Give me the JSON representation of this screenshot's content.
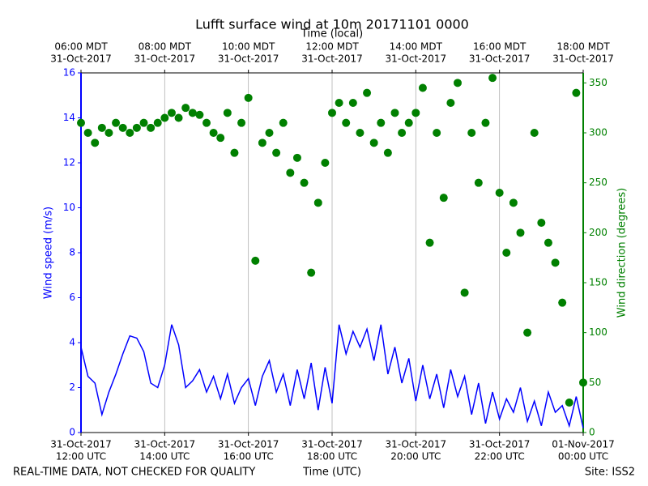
{
  "chart_data": {
    "type": "line-scatter",
    "title": "Lufft surface wind at 10m 20171101 0000",
    "x_label": "Time (UTC)",
    "x2_label": "Time (local)",
    "y_label": "Wind speed (m/s)",
    "y2_label": "Wind direction (degrees)",
    "footer_left": "REAL-TIME DATA, NOT CHECKED FOR QUALITY",
    "footer_right": "Site: ISS2",
    "xlim": [
      "2017-10-31T12:00",
      "2017-11-01T00:00"
    ],
    "xticks": [
      {
        "value": "2017-10-31T12:00",
        "label": [
          "31-Oct-2017",
          "12:00 UTC"
        ]
      },
      {
        "value": "2017-10-31T14:00",
        "label": [
          "31-Oct-2017",
          "14:00 UTC"
        ]
      },
      {
        "value": "2017-10-31T16:00",
        "label": [
          "31-Oct-2017",
          "16:00 UTC"
        ]
      },
      {
        "value": "2017-10-31T18:00",
        "label": [
          "31-Oct-2017",
          "18:00 UTC"
        ]
      },
      {
        "value": "2017-10-31T20:00",
        "label": [
          "31-Oct-2017",
          "20:00 UTC"
        ]
      },
      {
        "value": "2017-10-31T22:00",
        "label": [
          "31-Oct-2017",
          "22:00 UTC"
        ]
      },
      {
        "value": "2017-11-01T00:00",
        "label": [
          "01-Nov-2017",
          "00:00 UTC"
        ]
      }
    ],
    "x2ticks": [
      {
        "value": "2017-10-31T12:00",
        "label": [
          "06:00 MDT",
          "31-Oct-2017"
        ]
      },
      {
        "value": "2017-10-31T14:00",
        "label": [
          "08:00 MDT",
          "31-Oct-2017"
        ]
      },
      {
        "value": "2017-10-31T16:00",
        "label": [
          "10:00 MDT",
          "31-Oct-2017"
        ]
      },
      {
        "value": "2017-10-31T18:00",
        "label": [
          "12:00 MDT",
          "31-Oct-2017"
        ]
      },
      {
        "value": "2017-10-31T20:00",
        "label": [
          "14:00 MDT",
          "31-Oct-2017"
        ]
      },
      {
        "value": "2017-10-31T22:00",
        "label": [
          "16:00 MDT",
          "31-Oct-2017"
        ]
      },
      {
        "value": "2017-11-01T00:00",
        "label": [
          "18:00 MDT",
          "31-Oct-2017"
        ]
      }
    ],
    "ylim": [
      0,
      16
    ],
    "yticks": [
      0,
      2,
      4,
      6,
      8,
      10,
      12,
      14,
      16
    ],
    "y2lim": [
      0,
      360
    ],
    "y2ticks": [
      0,
      50,
      100,
      150,
      200,
      250,
      300,
      350
    ],
    "grid": true,
    "x": [
      "2017-10-31T12:00",
      "2017-10-31T12:10",
      "2017-10-31T12:20",
      "2017-10-31T12:30",
      "2017-10-31T12:40",
      "2017-10-31T12:50",
      "2017-10-31T13:00",
      "2017-10-31T13:10",
      "2017-10-31T13:20",
      "2017-10-31T13:30",
      "2017-10-31T13:40",
      "2017-10-31T13:50",
      "2017-10-31T14:00",
      "2017-10-31T14:10",
      "2017-10-31T14:20",
      "2017-10-31T14:30",
      "2017-10-31T14:40",
      "2017-10-31T14:50",
      "2017-10-31T15:00",
      "2017-10-31T15:10",
      "2017-10-31T15:20",
      "2017-10-31T15:30",
      "2017-10-31T15:40",
      "2017-10-31T15:50",
      "2017-10-31T16:00",
      "2017-10-31T16:10",
      "2017-10-31T16:20",
      "2017-10-31T16:30",
      "2017-10-31T16:40",
      "2017-10-31T16:50",
      "2017-10-31T17:00",
      "2017-10-31T17:10",
      "2017-10-31T17:20",
      "2017-10-31T17:30",
      "2017-10-31T17:40",
      "2017-10-31T17:50",
      "2017-10-31T18:00",
      "2017-10-31T18:10",
      "2017-10-31T18:20",
      "2017-10-31T18:30",
      "2017-10-31T18:40",
      "2017-10-31T18:50",
      "2017-10-31T19:00",
      "2017-10-31T19:10",
      "2017-10-31T19:20",
      "2017-10-31T19:30",
      "2017-10-31T19:40",
      "2017-10-31T19:50",
      "2017-10-31T20:00",
      "2017-10-31T20:10",
      "2017-10-31T20:20",
      "2017-10-31T20:30",
      "2017-10-31T20:40",
      "2017-10-31T20:50",
      "2017-10-31T21:00",
      "2017-10-31T21:10",
      "2017-10-31T21:20",
      "2017-10-31T21:30",
      "2017-10-31T21:40",
      "2017-10-31T21:50",
      "2017-10-31T22:00",
      "2017-10-31T22:10",
      "2017-10-31T22:20",
      "2017-10-31T22:30",
      "2017-10-31T22:40",
      "2017-10-31T22:50",
      "2017-10-31T23:00",
      "2017-10-31T23:10",
      "2017-10-31T23:20",
      "2017-10-31T23:30",
      "2017-10-31T23:40",
      "2017-10-31T23:50",
      "2017-11-01T00:00"
    ],
    "series": [
      {
        "name": "Wind speed",
        "color": "#0000ff",
        "kind": "line",
        "values": [
          3.8,
          2.5,
          2.2,
          0.8,
          1.8,
          2.6,
          3.5,
          4.3,
          4.2,
          3.6,
          2.2,
          2.0,
          3.0,
          4.8,
          3.9,
          2.0,
          2.3,
          2.8,
          1.8,
          2.5,
          1.5,
          2.6,
          1.3,
          2.0,
          2.4,
          1.2,
          2.5,
          3.2,
          1.8,
          2.6,
          1.2,
          2.8,
          1.5,
          3.1,
          1.0,
          2.9,
          1.3,
          4.8,
          3.5,
          4.5,
          3.8,
          4.6,
          3.2,
          4.8,
          2.6,
          3.8,
          2.2,
          3.3,
          1.4,
          3.0,
          1.5,
          2.6,
          1.1,
          2.8,
          1.6,
          2.5,
          0.8,
          2.2,
          0.4,
          1.8,
          0.6,
          1.5,
          0.9,
          2.0,
          0.5,
          1.4,
          0.3,
          1.8,
          0.9,
          1.2,
          0.3,
          1.6,
          0.2
        ]
      },
      {
        "name": "Wind direction",
        "color": "#008000",
        "kind": "scatter",
        "axis": "y2",
        "values": [
          310,
          300,
          290,
          305,
          300,
          310,
          305,
          300,
          305,
          310,
          305,
          310,
          315,
          320,
          315,
          325,
          320,
          318,
          310,
          300,
          295,
          320,
          280,
          310,
          335,
          172,
          290,
          300,
          280,
          310,
          260,
          275,
          250,
          160,
          230,
          270,
          320,
          330,
          310,
          330,
          300,
          340,
          290,
          310,
          280,
          320,
          300,
          310,
          320,
          345,
          190,
          300,
          235,
          330,
          350,
          140,
          300,
          250,
          310,
          355,
          240,
          180,
          230,
          200,
          100,
          300,
          210,
          190,
          170,
          130,
          30,
          340,
          50
        ]
      }
    ]
  }
}
